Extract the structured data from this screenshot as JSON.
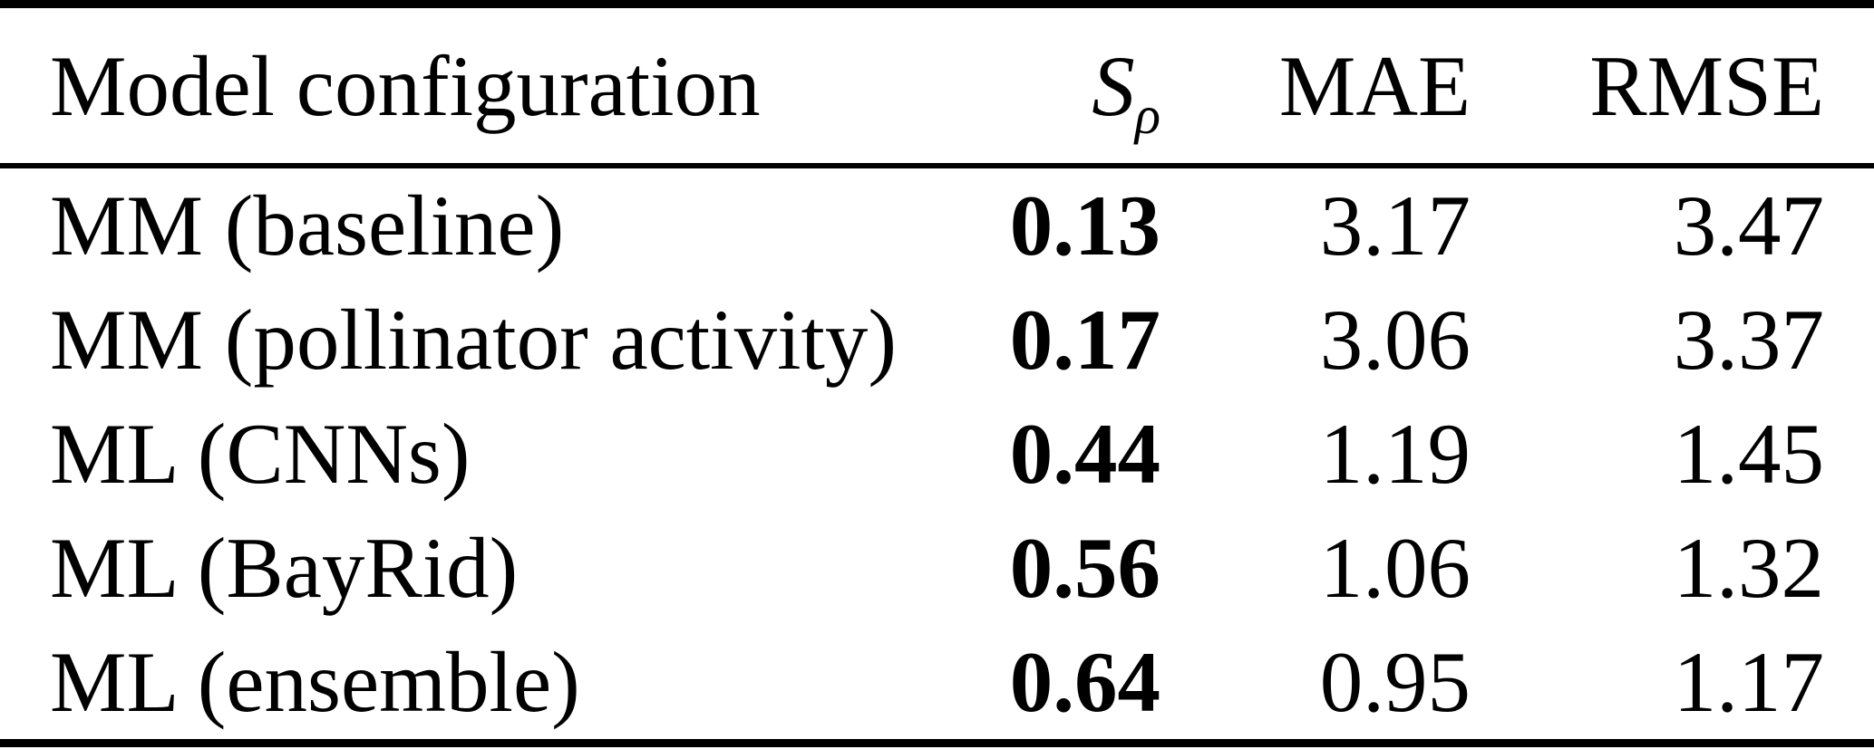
{
  "table": {
    "header": {
      "model_configuration": "Model configuration",
      "s_rho_main": "S",
      "s_rho_sub": "ρ",
      "mae": "MAE",
      "rmse": "RMSE"
    },
    "rows": [
      {
        "model": "MM (baseline)",
        "s_rho": "0.13",
        "mae": "3.17",
        "rmse": "3.47"
      },
      {
        "model": "MM (pollinator activity)",
        "s_rho": "0.17",
        "mae": "3.06",
        "rmse": "3.37"
      },
      {
        "model": "ML (CNNs)",
        "s_rho": "0.44",
        "mae": "1.19",
        "rmse": "1.45"
      },
      {
        "model": "ML (BayRid)",
        "s_rho": "0.56",
        "mae": "1.06",
        "rmse": "1.32"
      },
      {
        "model": "ML (ensemble)",
        "s_rho": "0.64",
        "mae": "0.95",
        "rmse": "1.17"
      }
    ]
  },
  "colors": {
    "text": "#000000",
    "background": "#ffffff",
    "rule": "#000000"
  }
}
